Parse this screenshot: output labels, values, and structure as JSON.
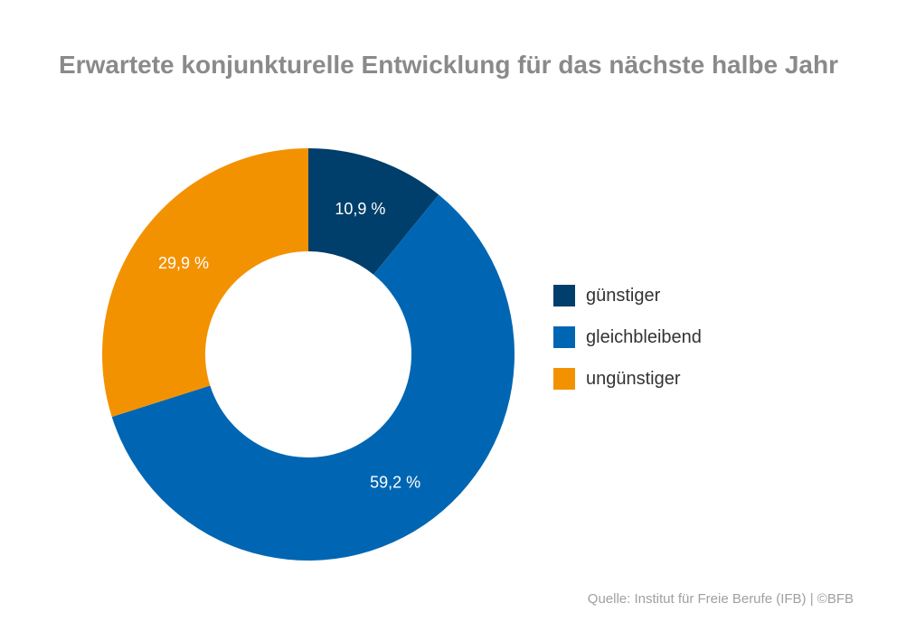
{
  "chart_data": {
    "type": "pie",
    "title": "Erwartete konjunkturelle Entwicklung für das nächste halbe Jahr",
    "donut": true,
    "categories": [
      "günstiger",
      "gleichbleibend",
      "ungünstiger"
    ],
    "values": [
      10.9,
      59.2,
      29.9
    ],
    "value_labels": [
      "10,9 %",
      "59,2 %",
      "29,9 %"
    ],
    "colors": [
      "#003e6b",
      "#0066b3",
      "#f39200"
    ],
    "legend": "right",
    "source": "Quelle: Institut für Freie Berufe (IFB) | ©BFB"
  }
}
